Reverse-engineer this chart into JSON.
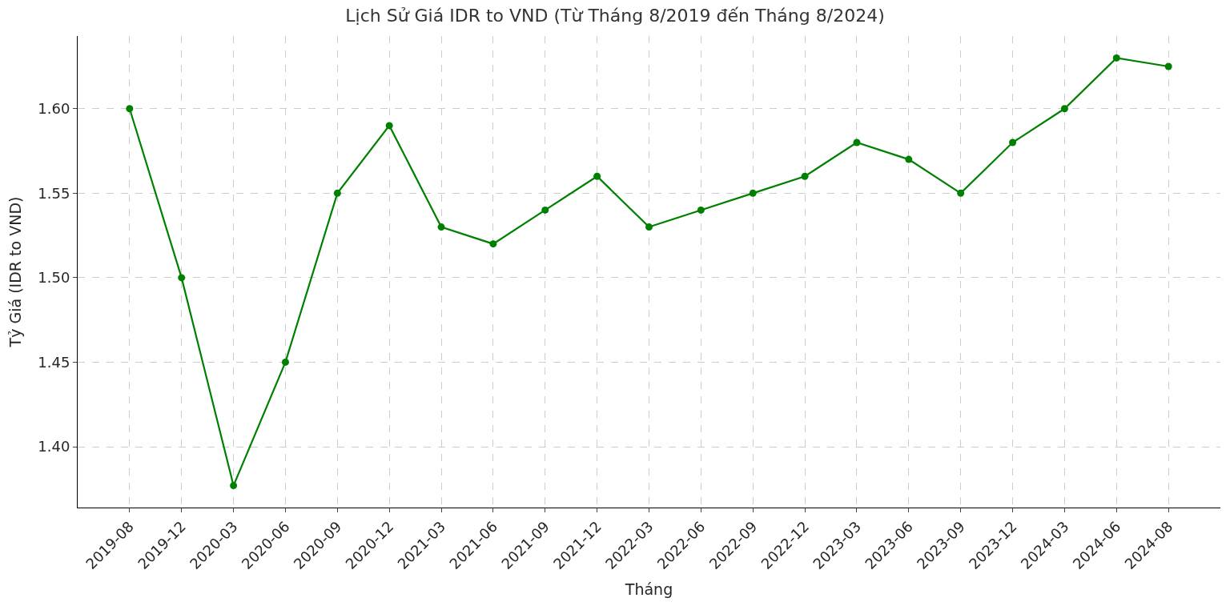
{
  "chart_data": {
    "type": "line",
    "title": "Lịch Sử Giá IDR to VND (Từ Tháng 8/2019 đến Tháng 8/2024)",
    "xlabel": "Tháng",
    "ylabel": "Tỷ Giá (IDR to VND)",
    "categories": [
      "2019-08",
      "2019-12",
      "2020-03",
      "2020-06",
      "2020-09",
      "2020-12",
      "2021-03",
      "2021-06",
      "2021-09",
      "2021-12",
      "2022-03",
      "2022-06",
      "2022-09",
      "2022-12",
      "2023-03",
      "2023-06",
      "2023-09",
      "2023-12",
      "2024-03",
      "2024-06",
      "2024-08"
    ],
    "series": [
      {
        "color": "#008000",
        "values": [
          1.6,
          1.5,
          1.377,
          1.45,
          1.55,
          1.59,
          1.53,
          1.52,
          1.54,
          1.56,
          1.53,
          1.54,
          1.55,
          1.56,
          1.58,
          1.57,
          1.55,
          1.58,
          1.6,
          1.63,
          1.625
        ]
      }
    ],
    "ylim": [
      1.364,
      1.643
    ],
    "yticks": [
      {
        "value": 1.4,
        "label": "1.40"
      },
      {
        "value": 1.45,
        "label": "1.45"
      },
      {
        "value": 1.5,
        "label": "1.50"
      },
      {
        "value": 1.55,
        "label": "1.55"
      },
      {
        "value": 1.6,
        "label": "1.60"
      }
    ],
    "grid": true,
    "marker": "circle",
    "line_style": "solid"
  }
}
